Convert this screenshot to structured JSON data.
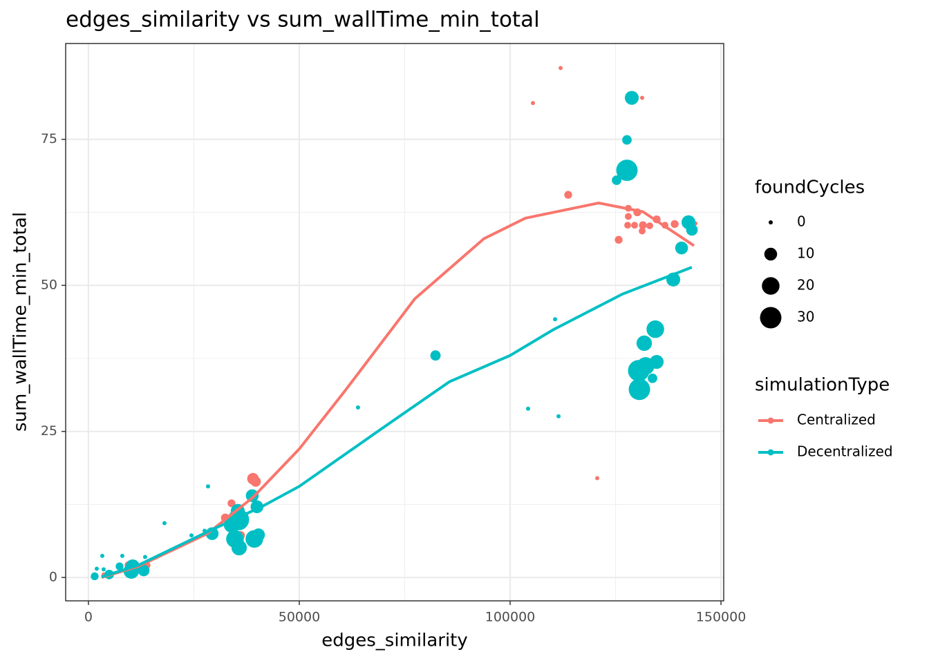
{
  "chart_data": {
    "type": "scatter",
    "title": "edges_similarity  vs  sum_wallTime_min_total",
    "x_label": "edges_similarity",
    "y_label": "sum_wallTime_min_total",
    "xlim": [
      -5400,
      150650
    ],
    "ylim": [
      -4.0,
      91.4
    ],
    "xticks": [
      0,
      50000,
      100000,
      150000
    ],
    "yticks": [
      0,
      25,
      50,
      75
    ],
    "grid": true,
    "size_legend": {
      "title": "foundCycles",
      "values": [
        0,
        10,
        20,
        30
      ]
    },
    "color_legend_title": "simulationType",
    "series": [
      {
        "name": "Centralized",
        "color": "#f8766d",
        "x": [
          111970,
          105410,
          131310,
          113770,
          128030,
          130160,
          128030,
          134750,
          127870,
          129510,
          131480,
          133110,
          136720,
          139020,
          131310,
          143930,
          125740,
          120660,
          39020,
          39670,
          33930,
          32460,
          36070,
          9510,
          12950,
          13770,
          11310,
          3600
        ],
        "y": [
          87.2,
          81.2,
          82.1,
          65.5,
          63.2,
          62.5,
          61.8,
          61.3,
          60.3,
          60.3,
          60.3,
          60.2,
          60.3,
          60.5,
          59.3,
          60.6,
          57.8,
          17.0,
          16.9,
          16.4,
          12.7,
          10.2,
          7.2,
          2.1,
          1.9,
          2.1,
          1.5,
          0.5
        ],
        "sizes": [
          0,
          0,
          0,
          3,
          2,
          3,
          2,
          3,
          2,
          2,
          3,
          2,
          2,
          3,
          2,
          0,
          3,
          0,
          8,
          6,
          3,
          4,
          4,
          3,
          2,
          3,
          2,
          0
        ],
        "smooth_x": [
          3110,
          11800,
          28200,
          39000,
          50000,
          61000,
          77400,
          93800,
          103600,
          121000,
          131500,
          143600
        ],
        "smooth_y": [
          0,
          1.9,
          7.5,
          13.7,
          22,
          32.1,
          47.7,
          58,
          61.5,
          64.1,
          62.6,
          56.8
        ]
      },
      {
        "name": "Decentralized",
        "color": "#00bfc4",
        "x": [
          128850,
          127700,
          127700,
          125250,
          142300,
          143110,
          140660,
          138690,
          110660,
          134430,
          131800,
          82300,
          134750,
          132130,
          130490,
          133770,
          130660,
          63930,
          104260,
          111480,
          28360,
          18030,
          24430,
          27540,
          29340,
          35410,
          35570,
          33930,
          34750,
          35740,
          39340,
          40330,
          38850,
          39970,
          3280,
          8030,
          1970,
          3610,
          1480,
          4920,
          10490,
          10160,
          13110,
          13440,
          7380
        ],
        "y": [
          82.1,
          74.9,
          69.7,
          68.0,
          60.8,
          59.5,
          56.4,
          51.0,
          44.2,
          42.5,
          40.1,
          38.0,
          36.9,
          36.2,
          35.4,
          34.1,
          32.2,
          29.1,
          28.9,
          27.6,
          15.6,
          9.3,
          7.2,
          8.0,
          7.5,
          11.4,
          9.9,
          9.0,
          6.6,
          5.1,
          6.6,
          7.3,
          14.0,
          12.1,
          3.7,
          3.7,
          1.5,
          1.4,
          0.2,
          0.5,
          1.9,
          1.1,
          1.2,
          3.5,
          1.9
        ],
        "sizes": [
          12,
          5,
          30,
          5,
          12,
          8,
          10,
          12,
          0,
          20,
          15,
          6,
          12,
          20,
          30,
          5,
          30,
          0,
          0,
          0,
          0,
          0,
          0,
          0,
          10,
          12,
          30,
          15,
          20,
          15,
          20,
          10,
          10,
          10,
          0,
          0,
          0,
          0,
          3,
          5,
          12,
          15,
          8,
          0,
          3
        ],
        "smooth_x": [
          3110,
          11800,
          28200,
          41300,
          50000,
          69200,
          85600,
          100000,
          110200,
          126600,
          143100
        ],
        "smooth_y": [
          0.1,
          2.1,
          7.8,
          12.2,
          15.6,
          25.3,
          33.5,
          38,
          42.4,
          48.5,
          53.1
        ]
      }
    ]
  }
}
